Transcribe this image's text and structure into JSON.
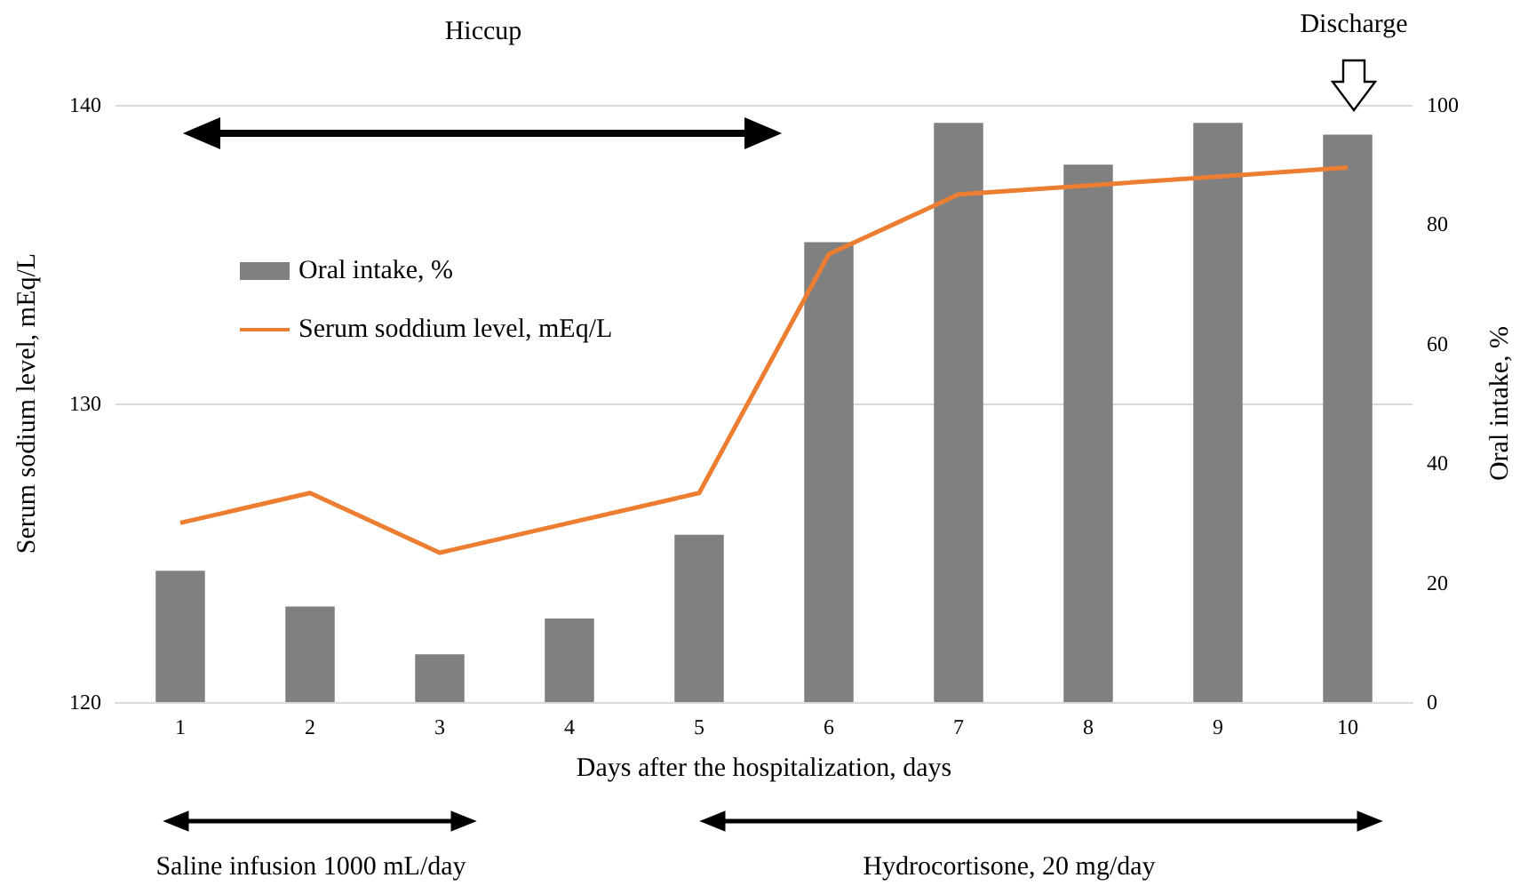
{
  "chart_data": {
    "type": "bar",
    "xlabel": "Days after the hospitalization, days",
    "ylabel": "Serum sodium level, mEq/L",
    "y2label": "Oral intake, %",
    "categories": [
      "1",
      "2",
      "3",
      "4",
      "5",
      "6",
      "7",
      "8",
      "9",
      "10"
    ],
    "series": [
      {
        "name": "Oral intake, %",
        "axis": "y2",
        "color": "#808080",
        "values": [
          22,
          16,
          8,
          14,
          28,
          77,
          97,
          90,
          97,
          95
        ]
      },
      {
        "name": "Serum soddium level, mEq/L",
        "type": "line",
        "color": "#ed7d31",
        "values": [
          126,
          127,
          125,
          126,
          127,
          135,
          137,
          137.3,
          137.6,
          137.9
        ]
      }
    ],
    "ylim": [
      120,
      140
    ],
    "yticks": [
      120,
      130,
      140
    ],
    "y2lim": [
      0,
      100
    ],
    "y2ticks": [
      0,
      20,
      40,
      60,
      80,
      100
    ],
    "grid": "y",
    "legend": "left",
    "marker": "none",
    "annotations": [
      "Hiccup",
      "Discharge",
      "Saline infusion 1000 mL/day",
      "Hydrocortisone, 20 mg/day"
    ]
  }
}
